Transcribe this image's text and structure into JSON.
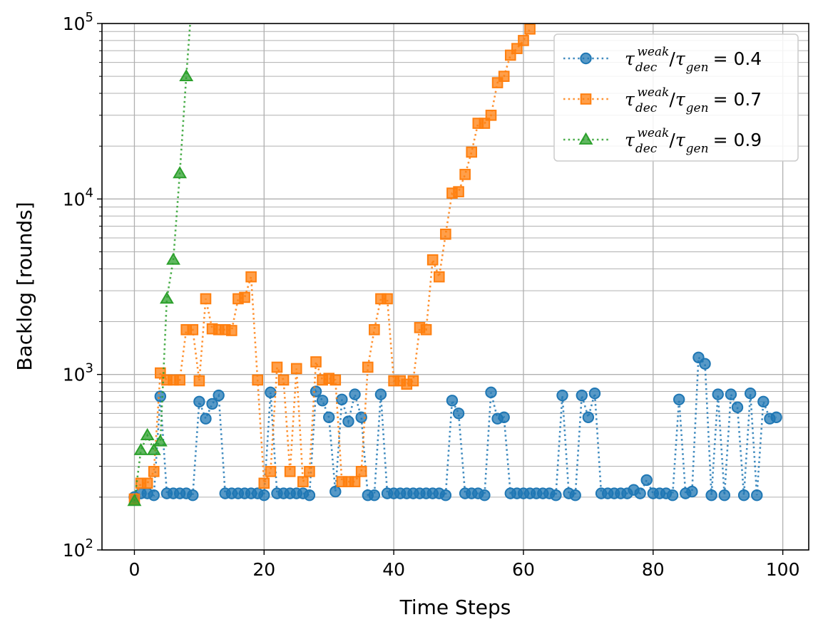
{
  "chart_data": {
    "type": "line",
    "title": "",
    "xlabel": "Time Steps",
    "ylabel": "Backlog [rounds]",
    "xlim": [
      -5,
      104
    ],
    "ylim": [
      100,
      100000
    ],
    "yscale": "log",
    "grid": true,
    "legend_position": "top-right",
    "x_ticks": [
      0,
      20,
      40,
      60,
      80,
      100
    ],
    "x_tick_labels": [
      "0",
      "20",
      "40",
      "60",
      "80",
      "100"
    ],
    "y_ticks": [
      100,
      1000,
      10000,
      100000
    ],
    "y_tick_labels": [
      {
        "base": "10",
        "exp": "2"
      },
      {
        "base": "10",
        "exp": "3"
      },
      {
        "base": "10",
        "exp": "4"
      },
      {
        "base": "10",
        "exp": "5"
      }
    ],
    "series": [
      {
        "name": "τ_dec^weak/τ_gen = 0.4",
        "legend": {
          "tau": "τ",
          "sub1": "dec",
          "sup1": "weak",
          "slash": "/",
          "sub2": "gen",
          "eq": "= 0.4"
        },
        "color": "#1f77b4",
        "marker": "circle",
        "x": [
          0,
          1,
          2,
          3,
          4,
          5,
          6,
          7,
          8,
          9,
          10,
          11,
          12,
          13,
          14,
          15,
          16,
          17,
          18,
          19,
          20,
          21,
          22,
          23,
          24,
          25,
          26,
          27,
          28,
          29,
          30,
          31,
          32,
          33,
          34,
          35,
          36,
          37,
          38,
          39,
          40,
          41,
          42,
          43,
          44,
          45,
          46,
          47,
          48,
          49,
          50,
          51,
          52,
          53,
          54,
          55,
          56,
          57,
          58,
          59,
          60,
          61,
          62,
          63,
          64,
          65,
          66,
          67,
          68,
          69,
          70,
          71,
          72,
          73,
          74,
          75,
          76,
          77,
          78,
          79,
          80,
          81,
          82,
          83,
          84,
          85,
          86,
          87,
          88,
          89,
          90,
          91,
          92,
          93,
          94,
          95,
          96,
          97,
          98,
          99
        ],
        "values": [
          200,
          210,
          210,
          205,
          750,
          210,
          210,
          210,
          210,
          205,
          700,
          560,
          680,
          760,
          210,
          210,
          210,
          210,
          210,
          210,
          205,
          790,
          210,
          210,
          210,
          210,
          210,
          205,
          800,
          710,
          570,
          215,
          720,
          540,
          770,
          570,
          205,
          205,
          770,
          210,
          210,
          210,
          210,
          210,
          210,
          210,
          210,
          210,
          205,
          710,
          600,
          210,
          210,
          210,
          205,
          790,
          560,
          570,
          210,
          210,
          210,
          210,
          210,
          210,
          210,
          205,
          760,
          210,
          205,
          760,
          570,
          780,
          210,
          210,
          210,
          210,
          210,
          220,
          210,
          250,
          210,
          210,
          210,
          205,
          720,
          210,
          215,
          1250,
          1150,
          205,
          770,
          205,
          770,
          650,
          205,
          780,
          205,
          700,
          560,
          570
        ]
      },
      {
        "name": "τ_dec^weak/τ_gen = 0.7",
        "legend": {
          "tau": "τ",
          "sub1": "dec",
          "sup1": "weak",
          "slash": "/",
          "sub2": "gen",
          "eq": "= 0.7"
        },
        "color": "#ff7f0e",
        "marker": "square",
        "x": [
          0,
          1,
          2,
          3,
          4,
          5,
          6,
          7,
          8,
          9,
          10,
          11,
          12,
          13,
          14,
          15,
          16,
          17,
          18,
          19,
          20,
          21,
          22,
          23,
          24,
          25,
          26,
          27,
          28,
          29,
          30,
          31,
          32,
          33,
          34,
          35,
          36,
          37,
          38,
          39,
          40,
          41,
          42,
          43,
          44,
          45,
          46,
          47,
          48,
          49,
          50,
          51,
          52,
          53,
          54,
          55,
          56,
          57,
          58,
          59,
          60,
          61
        ],
        "values": [
          195,
          240,
          240,
          280,
          1020,
          930,
          930,
          930,
          1800,
          1800,
          920,
          2700,
          1820,
          1800,
          1800,
          1780,
          2700,
          2750,
          3600,
          930,
          240,
          280,
          1100,
          930,
          280,
          1080,
          245,
          280,
          1180,
          930,
          950,
          930,
          245,
          245,
          245,
          280,
          1100,
          1800,
          2700,
          2700,
          920,
          920,
          880,
          920,
          1850,
          1800,
          4500,
          3600,
          6300,
          10800,
          11000,
          13800,
          18500,
          27000,
          27000,
          30000,
          46000,
          50000,
          66000,
          72000,
          80000,
          93000
        ]
      },
      {
        "name": "τ_dec^weak/τ_gen = 0.9",
        "legend": {
          "tau": "τ",
          "sub1": "dec",
          "sup1": "weak",
          "slash": "/",
          "sub2": "gen",
          "eq": "= 0.9"
        },
        "color": "#2ca02c",
        "marker": "triangle",
        "x": [
          0,
          1,
          2,
          3,
          4,
          5,
          6,
          7,
          8,
          8.6
        ],
        "values": [
          190,
          370,
          450,
          370,
          415,
          2700,
          4500,
          14000,
          50000,
          100000
        ],
        "marker_count": 9
      }
    ]
  }
}
